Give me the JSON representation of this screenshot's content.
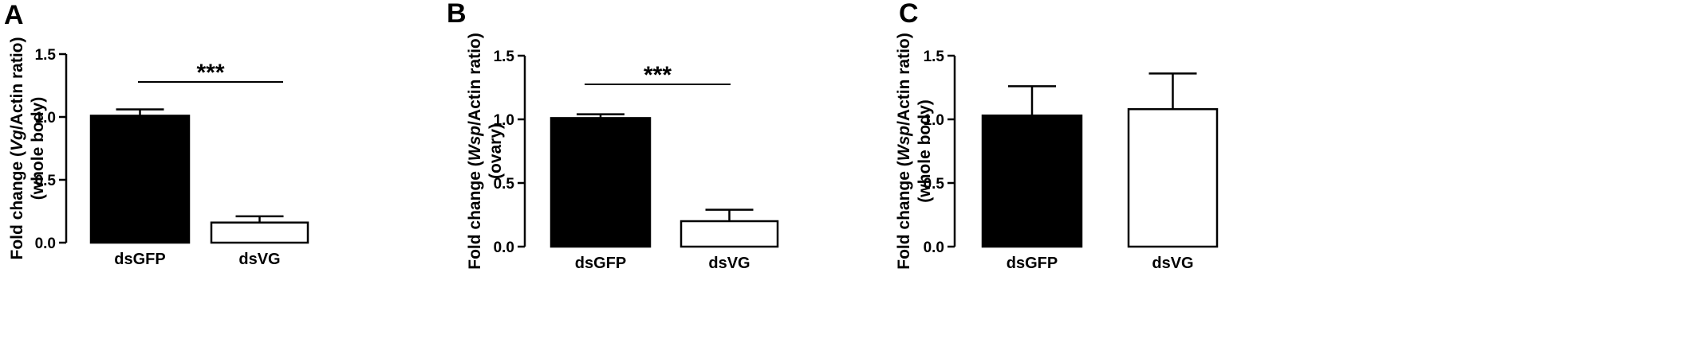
{
  "chart_data": [
    {
      "type": "bar",
      "panel": "A",
      "categories": [
        "dsGFP",
        "dsVG"
      ],
      "values": [
        1.01,
        0.16
      ],
      "errors": [
        0.05,
        0.05
      ],
      "fills": [
        "#000000",
        "#ffffff"
      ],
      "ylabel_line1_pre": "Fold change (",
      "ylabel_line1_ital": "Vg",
      "ylabel_line1_post": "/Actin ratio)",
      "ylabel_line2": "(whole body)",
      "ylim": [
        0,
        1.5
      ],
      "yticks": [
        "0.0",
        "0.5",
        "1.0",
        "1.5"
      ],
      "significance": "***",
      "grid": false
    },
    {
      "type": "bar",
      "panel": "B",
      "categories": [
        "dsGFP",
        "dsVG"
      ],
      "values": [
        1.01,
        0.2
      ],
      "errors": [
        0.03,
        0.09
      ],
      "fills": [
        "#000000",
        "#ffffff"
      ],
      "ylabel_line1_pre": "Fold change (",
      "ylabel_line1_ital": "Wsp",
      "ylabel_line1_post": "/Actin ratio)",
      "ylabel_line2": "(ovary)",
      "ylim": [
        0,
        1.5
      ],
      "yticks": [
        "0.0",
        "0.5",
        "1.0",
        "1.5"
      ],
      "significance": "***",
      "grid": false
    },
    {
      "type": "bar",
      "panel": "C",
      "categories": [
        "dsGFP",
        "dsVG"
      ],
      "values": [
        1.03,
        1.08
      ],
      "errors": [
        0.23,
        0.28
      ],
      "fills": [
        "#000000",
        "#ffffff"
      ],
      "ylabel_line1_pre": "Fold change (",
      "ylabel_line1_ital": "Wsp",
      "ylabel_line1_post": "/Actin ratio)",
      "ylabel_line2": "(whole body)",
      "ylim": [
        0,
        1.5
      ],
      "yticks": [
        "0.0",
        "0.5",
        "1.0",
        "1.5"
      ],
      "significance": "",
      "grid": false
    }
  ]
}
